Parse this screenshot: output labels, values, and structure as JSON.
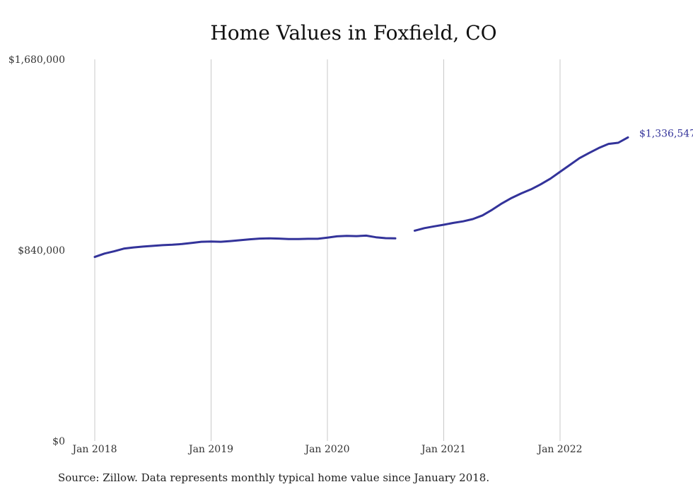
{
  "chart_data": {
    "type": "line",
    "title": "Home Values in Foxfield, CO",
    "ylim": [
      0,
      1680000
    ],
    "y_ticks": [
      {
        "value": 0,
        "label": "$0"
      },
      {
        "value": 840000,
        "label": "$840,000"
      },
      {
        "value": 1680000,
        "label": "$1,680,000"
      }
    ],
    "x_ticks": [
      {
        "value": 0,
        "label": "Jan 2018"
      },
      {
        "value": 12,
        "label": "Jan 2019"
      },
      {
        "value": 24,
        "label": "Jan 2020"
      },
      {
        "value": 36,
        "label": "Jan 2021"
      },
      {
        "value": 48,
        "label": "Jan 2022"
      }
    ],
    "xlim": [
      0,
      55
    ],
    "grid": "vertical",
    "line_color": "#33339a",
    "series": [
      {
        "values": [
          [
            0,
            810000
          ],
          [
            1,
            825000
          ],
          [
            2,
            835000
          ],
          [
            3,
            847000
          ],
          [
            4,
            852000
          ],
          [
            5,
            856000
          ],
          [
            6,
            859000
          ],
          [
            7,
            862000
          ],
          [
            8,
            864000
          ],
          [
            9,
            867000
          ],
          [
            10,
            872000
          ],
          [
            11,
            877000
          ],
          [
            12,
            878000
          ],
          [
            13,
            877000
          ],
          [
            14,
            880000
          ],
          [
            15,
            884000
          ],
          [
            16,
            888000
          ],
          [
            17,
            891000
          ],
          [
            18,
            892000
          ],
          [
            19,
            891000
          ],
          [
            20,
            889000
          ],
          [
            21,
            889000
          ],
          [
            22,
            890000
          ],
          [
            23,
            890000
          ],
          [
            24,
            895000
          ],
          [
            25,
            901000
          ],
          [
            26,
            903000
          ],
          [
            27,
            902000
          ],
          [
            28,
            904000
          ],
          [
            29,
            897000
          ],
          [
            30,
            893000
          ],
          [
            31,
            892000
          ]
        ]
      },
      {
        "values": [
          [
            32,
            null
          ],
          [
            33,
            926000
          ],
          [
            34,
            937000
          ],
          [
            35,
            945000
          ],
          [
            36,
            952000
          ],
          [
            37,
            960000
          ],
          [
            38,
            967000
          ],
          [
            39,
            977000
          ],
          [
            40,
            993000
          ],
          [
            41,
            1018000
          ],
          [
            42,
            1046000
          ],
          [
            43,
            1070000
          ],
          [
            44,
            1090000
          ],
          [
            45,
            1108000
          ],
          [
            46,
            1130000
          ],
          [
            47,
            1155000
          ],
          [
            48,
            1185000
          ],
          [
            49,
            1215000
          ],
          [
            50,
            1245000
          ],
          [
            51,
            1268000
          ],
          [
            52,
            1290000
          ],
          [
            53,
            1308000
          ],
          [
            54,
            1313000
          ],
          [
            55,
            1336547
          ]
        ]
      }
    ],
    "end_label": "$1,336,547"
  },
  "source": "Source: Zillow. Data represents monthly typical home value since January 2018."
}
